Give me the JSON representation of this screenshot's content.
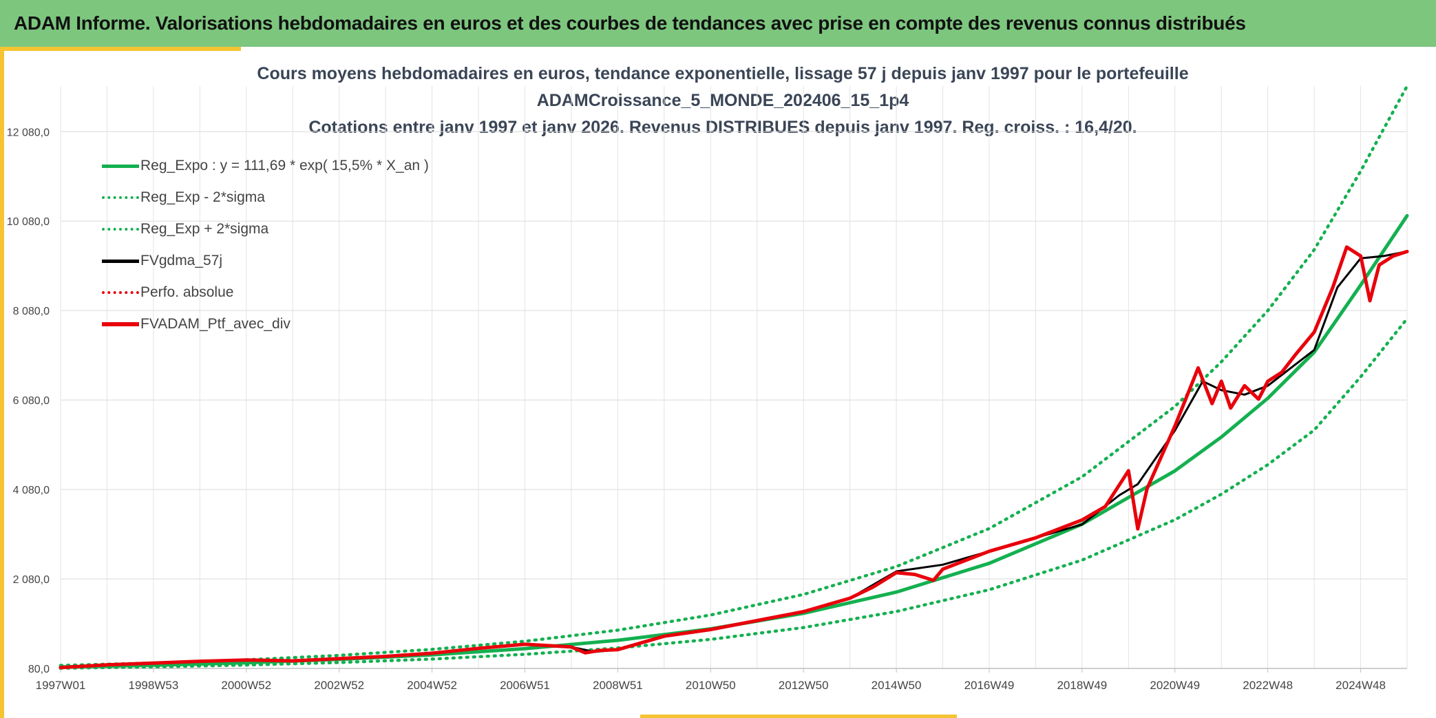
{
  "header": {
    "title": "ADAM Informe. Valorisations hebdomadaires en euros et des courbes de tendances avec prise en compte des revenus connus distribués"
  },
  "colors": {
    "header_bg": "#7dc67e",
    "accent": "#f4c431",
    "regression": "#14b050",
    "smoothing": "#000000",
    "portfolio": "#e8000b",
    "title_text": "#3a4556"
  },
  "chart_data": {
    "type": "line",
    "title_lines": [
      "Cours moyens hebdomadaires en euros, tendance exponentielle, lissage 57 j depuis janv 1997 pour le portefeuille",
      "ADAMCroissance_5_MONDE_202406_15_1p4",
      "Cotations entre janv 1997 et janv 2026. Revenus DISTRIBUES depuis janv 1997. Reg. croiss. : 16,4/20."
    ],
    "xlabel": "",
    "ylabel": "",
    "x_range": [
      1997.0,
      2026.0
    ],
    "ylim": [
      80,
      13100
    ],
    "y_ticks": [
      80,
      2080,
      4080,
      6080,
      8080,
      10080,
      12080
    ],
    "y_tick_labels": [
      "80,0",
      "2 080,0",
      "4 080,0",
      "6 080,0",
      "8 080,0",
      "10 080,0",
      "12 080,0"
    ],
    "x_tick_labels": [
      "1997W01",
      "1998W53",
      "2000W52",
      "2002W52",
      "2004W52",
      "2006W51",
      "2008W51",
      "2010W50",
      "2012W50",
      "2014W50",
      "2016W49",
      "2018W49",
      "2020W49",
      "2022W48",
      "2024W48"
    ],
    "x_tick_years": [
      1997.0,
      1999.0,
      2001.0,
      2003.0,
      2005.0,
      2007.0,
      2009.0,
      2011.0,
      2013.0,
      2015.0,
      2017.0,
      2019.0,
      2021.0,
      2023.0,
      2025.0
    ],
    "grid": true,
    "legend_position": "top-left",
    "series": [
      {
        "name": "Reg_Expo : y = 111,69 * exp( 15,5% *  X_an )",
        "style": "solid-green",
        "x": [
          1997.0,
          1999.0,
          2001.0,
          2003.0,
          2005.0,
          2007.0,
          2009.0,
          2011.0,
          2013.0,
          2015.0,
          2017.0,
          2019.0,
          2021.0,
          2022.0,
          2023.0,
          2024.0,
          2025.0,
          2026.0
        ],
        "y": [
          112,
          152,
          207,
          282,
          383,
          521,
          709,
          965,
          1313,
          1786,
          2430,
          3306,
          4498,
          5252,
          6120,
          7150,
          8650,
          10200
        ]
      },
      {
        "name": "Reg_Exp - 2*sigma",
        "style": "dotted-green",
        "x": [
          1997.0,
          1999.0,
          2001.0,
          2003.0,
          2005.0,
          2007.0,
          2009.0,
          2011.0,
          2013.0,
          2015.0,
          2017.0,
          2019.0,
          2021.0,
          2022.0,
          2023.0,
          2024.0,
          2025.0,
          2026.0
        ],
        "y": [
          85,
          115,
          157,
          213,
          290,
          395,
          537,
          730,
          994,
          1352,
          1839,
          2503,
          3405,
          3975,
          4635,
          5410,
          6600,
          7900
        ]
      },
      {
        "name": "Reg_Exp + 2*sigma",
        "style": "dotted-green",
        "x": [
          1997.0,
          1999.0,
          2001.0,
          2003.0,
          2005.0,
          2007.0,
          2009.0,
          2011.0,
          2013.0,
          2015.0,
          2017.0,
          2019.0,
          2021.0,
          2022.0,
          2023.0,
          2024.0,
          2025.0,
          2026.0
        ],
        "y": [
          148,
          201,
          273,
          372,
          506,
          688,
          936,
          1274,
          1734,
          2358,
          3208,
          4365,
          5938,
          6935,
          8080,
          9440,
          11200,
          13100
        ]
      },
      {
        "name": "FVgdma_57j",
        "style": "solid-black",
        "x": [
          1997.0,
          1998.0,
          1999.0,
          2000.0,
          2001.0,
          2002.0,
          2003.0,
          2004.0,
          2005.0,
          2006.0,
          2007.0,
          2008.0,
          2008.5,
          2009.0,
          2010.0,
          2011.0,
          2012.0,
          2013.0,
          2014.0,
          2014.5,
          2015.0,
          2016.0,
          2017.0,
          2018.0,
          2019.0,
          2019.8,
          2020.2,
          2021.0,
          2021.6,
          2022.0,
          2022.5,
          2023.0,
          2024.0,
          2024.5,
          2025.0,
          2025.5,
          2026.0
        ],
        "y": [
          100,
          150,
          200,
          240,
          270,
          260,
          300,
          350,
          420,
          520,
          610,
          560,
          450,
          500,
          800,
          950,
          1150,
          1350,
          1650,
          1950,
          2250,
          2400,
          2700,
          3000,
          3300,
          3950,
          4200,
          5400,
          6500,
          6300,
          6200,
          6400,
          7200,
          8600,
          9250,
          9300,
          9400
        ]
      },
      {
        "name": "Perfo. absolue",
        "style": "dotted-red",
        "x": [],
        "y": []
      },
      {
        "name": "FVADAM_Ptf_avec_div",
        "style": "solid-red-thick",
        "x": [
          1997.0,
          1998.0,
          1999.0,
          2000.0,
          2001.0,
          2002.0,
          2003.0,
          2004.0,
          2005.0,
          2006.0,
          2007.0,
          2008.0,
          2008.3,
          2008.6,
          2009.0,
          2010.0,
          2011.0,
          2012.0,
          2013.0,
          2014.0,
          2014.5,
          2015.0,
          2015.4,
          2015.8,
          2016.0,
          2017.0,
          2018.0,
          2019.0,
          2019.5,
          2020.0,
          2020.2,
          2020.4,
          2021.0,
          2021.5,
          2021.8,
          2022.0,
          2022.2,
          2022.5,
          2022.8,
          2023.0,
          2023.3,
          2023.6,
          2024.0,
          2024.4,
          2024.7,
          2025.0,
          2025.2,
          2025.4,
          2025.7,
          2026.0
        ],
        "y": [
          100,
          160,
          200,
          240,
          270,
          250,
          300,
          350,
          420,
          530,
          620,
          560,
          430,
          480,
          500,
          800,
          950,
          1150,
          1350,
          1650,
          1900,
          2220,
          2180,
          2050,
          2300,
          2700,
          3000,
          3400,
          3700,
          4500,
          3200,
          4100,
          5500,
          6800,
          6000,
          6500,
          5900,
          6400,
          6100,
          6500,
          6700,
          7100,
          7600,
          8600,
          9500,
          9300,
          8300,
          9100,
          9300,
          9400
        ]
      }
    ]
  }
}
